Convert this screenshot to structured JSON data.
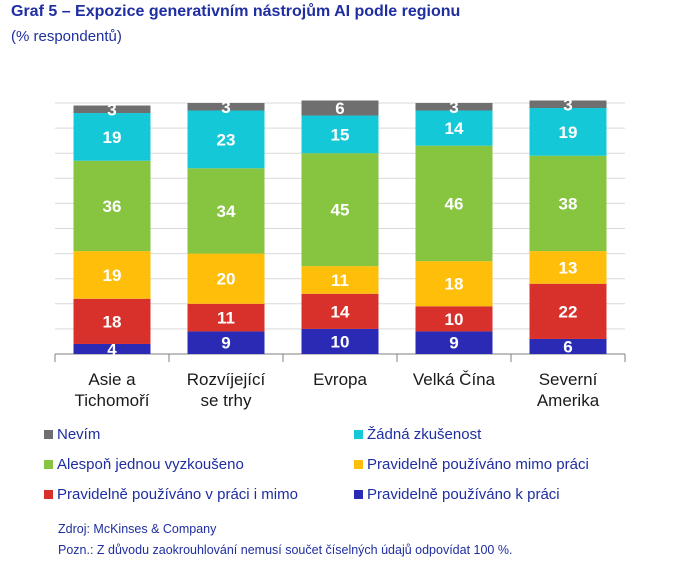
{
  "header": {
    "title": "Graf 5 – Expozice generativním nástrojům AI podle regionu",
    "subtitle": "(% respondentů)"
  },
  "chart_data": {
    "type": "bar",
    "stacked": true,
    "categories": [
      [
        "Asie a",
        "Tichomoří"
      ],
      [
        "Rozvíjející",
        "se trhy"
      ],
      [
        "Evropa"
      ],
      [
        "Velká Čína"
      ],
      [
        "Severní",
        "Amerika"
      ]
    ],
    "ylim": [
      0,
      100
    ],
    "grid": true,
    "legend_placement": "bottom",
    "series": [
      {
        "name": "Pravidelně používáno k práci",
        "color": "#2a2ab4",
        "label_color": "#ffffff",
        "values": [
          4,
          9,
          10,
          9,
          6
        ]
      },
      {
        "name": "Pravidelně používáno v práci i mimo",
        "color": "#d8302a",
        "label_color": "#ffffff",
        "values": [
          18,
          11,
          14,
          10,
          22
        ]
      },
      {
        "name": "Pravidelně používáno mimo práci",
        "color": "#ffbe0a",
        "label_color": "#ffffff",
        "values": [
          19,
          20,
          11,
          18,
          13
        ]
      },
      {
        "name": "Alespoň jednou vyzkoušeno",
        "color": "#87c440",
        "label_color": "#ffffff",
        "values": [
          36,
          34,
          45,
          46,
          38
        ]
      },
      {
        "name": "Žádná zkušenost",
        "color": "#14c8d8",
        "label_color": "#ffffff",
        "values": [
          19,
          23,
          15,
          14,
          19
        ]
      },
      {
        "name": "Nevím",
        "color": "#6f6f6f",
        "label_color": "#ffffff",
        "values": [
          3,
          3,
          6,
          3,
          3
        ]
      }
    ],
    "legend_order": [
      "Nevím",
      "Žádná zkušenost",
      "Alespoň jednou vyzkoušeno",
      "Pravidelně používáno mimo práci",
      "Pravidelně používáno v práci i mimo",
      "Pravidelně používáno k práci"
    ]
  },
  "footer": {
    "source": "Zdroj: McKinses & Company",
    "note": "Pozn.: Z důvodu zaokrouhlování nemusí součet číselných údajů odpovídat 100 %."
  }
}
